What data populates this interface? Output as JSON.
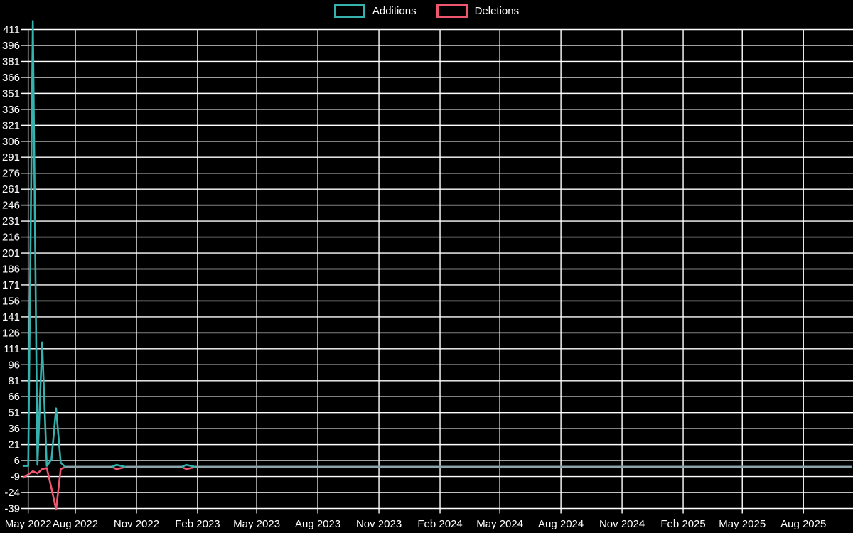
{
  "legend": {
    "items": [
      {
        "label": "Additions",
        "color": "#35b2ae"
      },
      {
        "label": "Deletions",
        "color": "#ef5670"
      }
    ]
  },
  "chart_data": {
    "type": "line",
    "title": "",
    "background_color": "#000000",
    "grid_color": "#ffffff",
    "text_color": "#ffffff",
    "grid": true,
    "legend_position": "top-center",
    "zero_overlap_color": "#8ba3a9",
    "x_axis": {
      "ticks": [
        {
          "label": "May 2022",
          "date": "2022-05-22"
        },
        {
          "label": "Aug 2022",
          "date": "2022-08-01"
        },
        {
          "label": "Nov 2022",
          "date": "2022-11-01"
        },
        {
          "label": "Feb 2023",
          "date": "2023-02-01"
        },
        {
          "label": "May 2023",
          "date": "2023-05-01"
        },
        {
          "label": "Aug 2023",
          "date": "2023-08-01"
        },
        {
          "label": "Nov 2023",
          "date": "2023-11-01"
        },
        {
          "label": "Feb 2024",
          "date": "2024-02-01"
        },
        {
          "label": "May 2024",
          "date": "2024-05-01"
        },
        {
          "label": "Aug 2024",
          "date": "2024-08-01"
        },
        {
          "label": "Nov 2024",
          "date": "2024-11-01"
        },
        {
          "label": "Feb 2025",
          "date": "2025-02-01"
        },
        {
          "label": "May 2025",
          "date": "2025-05-01"
        },
        {
          "label": "Aug 2025",
          "date": "2025-08-01"
        }
      ]
    },
    "y_axis": {
      "ticks": [
        -39,
        -24,
        -9,
        6,
        21,
        36,
        51,
        66,
        81,
        96,
        111,
        126,
        141,
        156,
        171,
        186,
        201,
        216,
        231,
        246,
        261,
        276,
        291,
        306,
        321,
        336,
        351,
        366,
        381,
        396,
        411
      ],
      "min": -43,
      "max": 421
    },
    "series": [
      {
        "name": "Additions",
        "color": "#35b2ae",
        "points": [
          [
            "2022-05-15",
            1
          ],
          [
            "2022-05-22",
            1
          ],
          [
            "2022-05-29",
            419
          ],
          [
            "2022-06-05",
            2
          ],
          [
            "2022-06-12",
            117
          ],
          [
            "2022-06-19",
            1
          ],
          [
            "2022-06-26",
            7
          ],
          [
            "2022-07-03",
            55
          ],
          [
            "2022-07-10",
            4
          ],
          [
            "2022-07-17",
            0
          ],
          [
            "2022-09-25",
            0
          ],
          [
            "2022-10-02",
            2
          ],
          [
            "2022-10-09",
            1
          ],
          [
            "2022-10-16",
            0
          ],
          [
            "2023-01-08",
            0
          ],
          [
            "2023-01-15",
            2
          ],
          [
            "2023-01-22",
            1
          ],
          [
            "2023-01-29",
            0
          ],
          [
            "2025-10-12",
            0
          ]
        ]
      },
      {
        "name": "Deletions",
        "color": "#ef5670",
        "points": [
          [
            "2022-05-15",
            -10
          ],
          [
            "2022-05-22",
            -7
          ],
          [
            "2022-05-29",
            -4
          ],
          [
            "2022-06-05",
            -6
          ],
          [
            "2022-06-12",
            -2
          ],
          [
            "2022-06-19",
            -1
          ],
          [
            "2022-06-26",
            -20
          ],
          [
            "2022-07-03",
            -40
          ],
          [
            "2022-07-10",
            -2
          ],
          [
            "2022-07-17",
            0
          ],
          [
            "2022-09-25",
            0
          ],
          [
            "2022-10-02",
            -2
          ],
          [
            "2022-10-09",
            -1
          ],
          [
            "2022-10-16",
            0
          ],
          [
            "2023-01-08",
            0
          ],
          [
            "2023-01-15",
            -2
          ],
          [
            "2023-01-22",
            -1
          ],
          [
            "2023-01-29",
            0
          ],
          [
            "2025-10-12",
            0
          ]
        ]
      }
    ]
  }
}
